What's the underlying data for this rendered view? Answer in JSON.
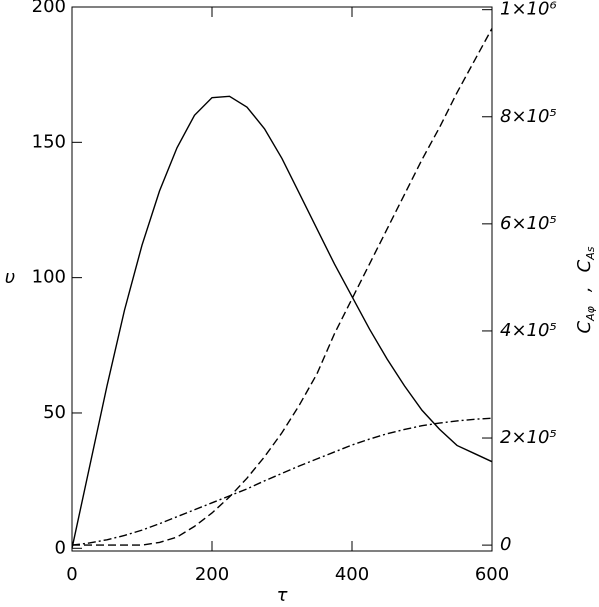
{
  "chart_data": {
    "type": "line",
    "x_label": "τ",
    "y_label": "υ",
    "y2_label": [
      "C",
      "Aφ",
      ",",
      "C",
      "As"
    ],
    "x": [
      0,
      25,
      50,
      75,
      100,
      125,
      150,
      175,
      200,
      225,
      250,
      275,
      300,
      325,
      350,
      375,
      400,
      425,
      450,
      475,
      500,
      525,
      550,
      575,
      600
    ],
    "series": [
      {
        "color": "#000000",
        "style": "solid",
        "values": [
          0,
          30,
          60,
          88,
          112,
          132,
          148,
          160,
          166.5,
          167,
          163,
          155,
          144,
          131,
          118,
          105,
          93,
          81,
          70,
          60,
          51,
          44,
          38,
          35,
          32
        ]
      },
      {
        "color": "#000000",
        "style": "dashed",
        "axis": "y2",
        "values": [
          0,
          0,
          0,
          0,
          0,
          5000,
          15000,
          35000,
          60000,
          90000,
          125000,
          165000,
          210000,
          262000,
          320000,
          395000,
          460000,
          525000,
          590000,
          655000,
          720000,
          780000,
          845000,
          905000,
          965000
        ]
      },
      {
        "color": "#000000",
        "style": "dashdot",
        "axis": "y2",
        "values": [
          0,
          4000,
          10000,
          18000,
          28000,
          40000,
          53000,
          66000,
          79000,
          92000,
          105000,
          120000,
          134000,
          148000,
          161000,
          174000,
          187000,
          198000,
          208000,
          216000,
          223000,
          228000,
          232000,
          235000,
          237000
        ]
      }
    ],
    "xlim": [
      0,
      600
    ],
    "xticks": [
      0,
      200,
      400,
      600
    ],
    "ylim": [
      -1,
      200
    ],
    "yticks": [
      0,
      50,
      100,
      150,
      200
    ],
    "y2lim": [
      -11000,
      1005000
    ],
    "y2ticks": [
      0,
      {
        "value": 200000,
        "label": "2×10⁵"
      },
      {
        "value": 400000,
        "label": "4×10⁵"
      },
      {
        "value": 600000,
        "label": "6×10⁵"
      },
      {
        "value": 800000,
        "label": "8×10⁵"
      },
      {
        "value": 1000000,
        "label": "1×10⁶"
      }
    ]
  }
}
